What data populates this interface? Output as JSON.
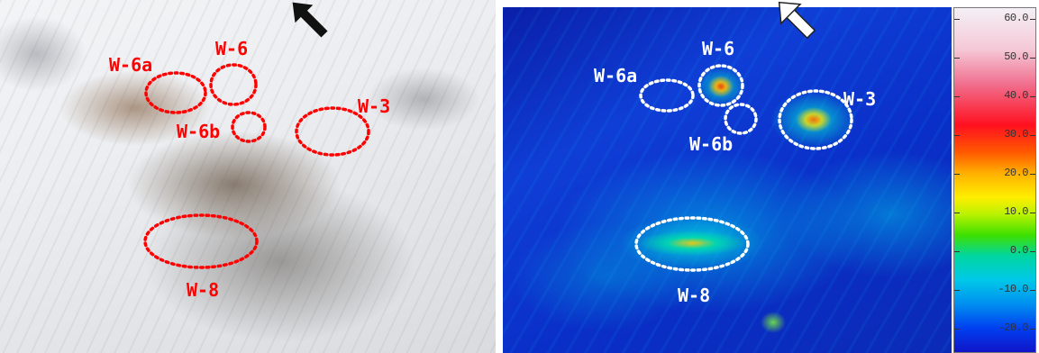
{
  "photo": {
    "labels": {
      "w6a": "W-6a",
      "w6": "W-6",
      "w6b": "W-6b",
      "w3": "W-3",
      "w8": "W-8"
    },
    "overlay_color": "#ff0000"
  },
  "thermal": {
    "labels": {
      "w6a": "W-6a",
      "w6": "W-6",
      "w6b": "W-6b",
      "w3": "W-3",
      "w8": "W-8"
    },
    "overlay_color": "#ffffff"
  },
  "color_scale": {
    "ticks": [
      "60.0",
      "50.0",
      "40.0",
      "30.0",
      "20.0",
      "10.0",
      "0.0",
      "-10.0",
      "-20.0"
    ]
  }
}
